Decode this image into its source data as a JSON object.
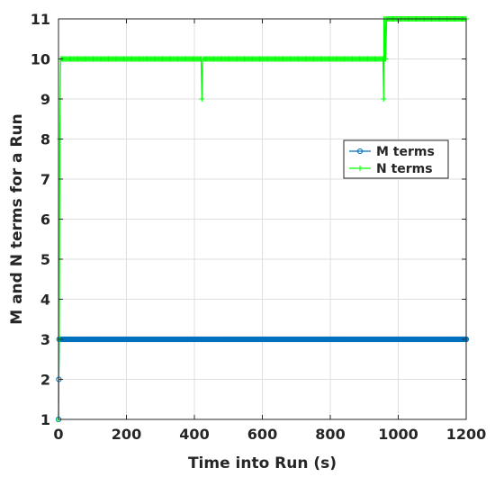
{
  "chart_data": {
    "type": "line",
    "xlabel": "Time into Run (s)",
    "ylabel": "M and N terms for a Run",
    "xlim": [
      0,
      1200
    ],
    "ylim": [
      1,
      11
    ],
    "xticks": [
      0,
      200,
      400,
      600,
      800,
      1000,
      1200
    ],
    "yticks": [
      1,
      2,
      3,
      4,
      5,
      6,
      7,
      8,
      9,
      10,
      11
    ],
    "grid": true,
    "legend_position": "right",
    "series": [
      {
        "name": "M terms",
        "color": "#0072BD",
        "marker": "circle",
        "x": [
          0,
          1,
          2,
          1200
        ],
        "y": [
          1,
          2,
          3,
          3
        ]
      },
      {
        "name": "N terms",
        "color": "#00FF00",
        "marker": "plus",
        "x": [
          0,
          2,
          4,
          6,
          420,
          422,
          424,
          955,
          957,
          958,
          960,
          962,
          963,
          966,
          1200
        ],
        "y": [
          1,
          3,
          8,
          10,
          10,
          9,
          10,
          10,
          9,
          11,
          10,
          11,
          10,
          11,
          11
        ]
      }
    ]
  }
}
